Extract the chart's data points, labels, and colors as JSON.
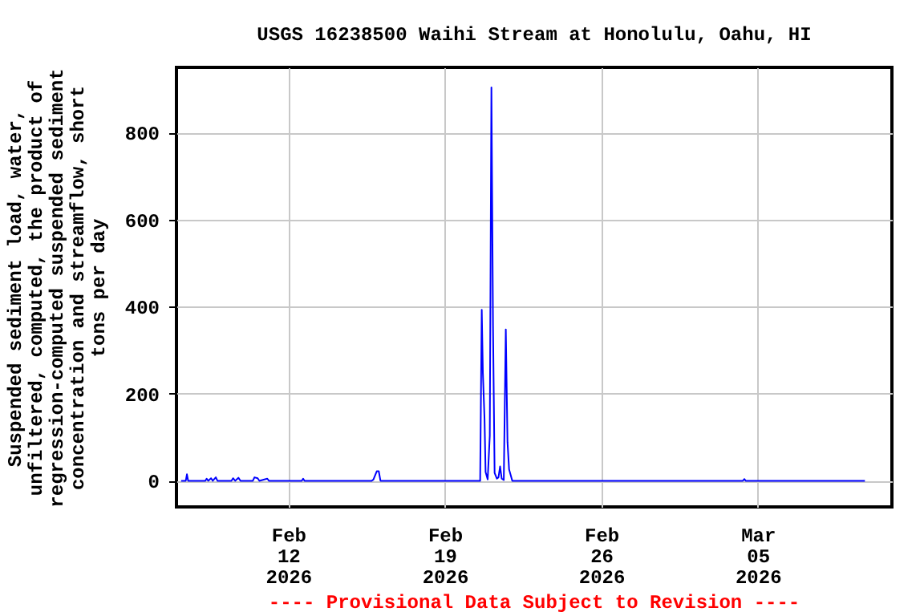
{
  "chart_data": {
    "type": "line",
    "title": "USGS 16238500 Waihi Stream at Honolulu, Oahu, HI",
    "ylabel": "Suspended sediment load, water,\nunfiltered, computed, the product of\nregression-computed suspended sediment\nconcentration and streamflow, short\ntons per day",
    "annotations": [
      "---- Provisional Data Subject to Revision ----"
    ],
    "series": [
      {
        "color": "#0000ff",
        "x": [
          "2026-02-07T05:00",
          "2026-02-07T10:00",
          "2026-02-07T11:15",
          "2026-02-07T12:30",
          "2026-02-08T07:00",
          "2026-02-08T08:25",
          "2026-02-08T10:05",
          "2026-02-08T13:10",
          "2026-02-08T15:00",
          "2026-02-08T18:15",
          "2026-02-08T20:00",
          "2026-02-09T11:00",
          "2026-02-09T12:45",
          "2026-02-09T15:00",
          "2026-02-09T18:30",
          "2026-02-09T20:45",
          "2026-02-10T10:00",
          "2026-02-10T11:45",
          "2026-02-10T15:10",
          "2026-02-10T17:00",
          "2026-02-11T01:30",
          "2026-02-11T03:15",
          "2026-02-12T14:30",
          "2026-02-12T16:00",
          "2026-02-12T17:30",
          "2026-02-15T17:30",
          "2026-02-15T19:25",
          "2026-02-15T23:00",
          "2026-02-16T01:10",
          "2026-02-16T03:00",
          "2026-02-20T14:00",
          "2026-02-20T15:43",
          "2026-02-20T16:55",
          "2026-02-20T18:40",
          "2026-02-20T19:50",
          "2026-02-20T22:05",
          "2026-02-21T00:20",
          "2026-02-21T02:05",
          "2026-02-21T03:48",
          "2026-02-21T05:31",
          "2026-02-21T07:55",
          "2026-02-21T09:40",
          "2026-02-21T11:24",
          "2026-02-21T13:08",
          "2026-02-21T15:22",
          "2026-02-21T17:32",
          "2026-02-21T19:21",
          "2026-02-21T21:04",
          "2026-02-22T00:30",
          "2026-03-04T08:00",
          "2026-03-04T09:40",
          "2026-03-04T11:00",
          "2026-03-09T19:00"
        ],
        "values": [
          0,
          0,
          15,
          0,
          0,
          5,
          0,
          6,
          0,
          8,
          0,
          0,
          6,
          0,
          7,
          0,
          0,
          8,
          6,
          0,
          5,
          0,
          0,
          5,
          0,
          0,
          3,
          22,
          22,
          0,
          0,
          393,
          248,
          144,
          20,
          3,
          104,
          904,
          355,
          18,
          5,
          8,
          33,
          5,
          2,
          348,
          89,
          26,
          0,
          0,
          4,
          0,
          0
        ]
      }
    ],
    "xlim": [
      "2026-02-07",
      "2026-03-11"
    ],
    "xticks": [
      {
        "value": "2026-02-12",
        "label": "Feb\n12\n2026"
      },
      {
        "value": "2026-02-19",
        "label": "Feb\n19\n2026"
      },
      {
        "value": "2026-02-26",
        "label": "Feb\n26\n2026"
      },
      {
        "value": "2026-03-05",
        "label": "Mar\n05\n2026"
      }
    ],
    "ylim": [
      -60,
      950
    ],
    "yticks": [
      0,
      200,
      400,
      600,
      800
    ],
    "grid": true
  }
}
